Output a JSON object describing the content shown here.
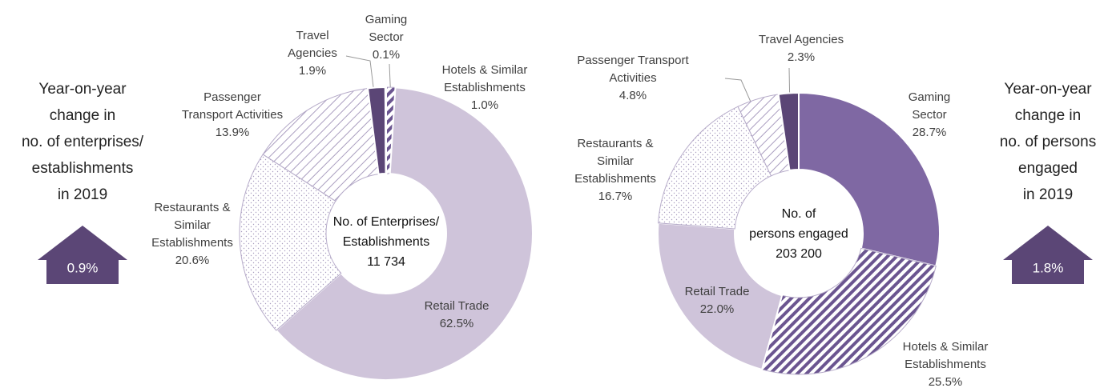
{
  "chart_data": [
    {
      "type": "donut",
      "center_label": [
        "No. of Enterprises/",
        "Establishments"
      ],
      "center_value": "11 734",
      "categories": [
        [
          "Hotels & Similar",
          "Establishments"
        ],
        [
          "Retail Trade"
        ],
        [
          "Restaurants &",
          "Similar",
          "Establishments"
        ],
        [
          "Passenger",
          "Transport Activities"
        ],
        [
          "Travel",
          "Agencies"
        ],
        [
          "Gaming",
          "Sector"
        ]
      ],
      "values": [
        1.0,
        62.5,
        20.6,
        13.9,
        1.9,
        0.1
      ],
      "value_labels": [
        "1.0%",
        "62.5%",
        "20.6%",
        "13.9%",
        "1.9%",
        "0.1%"
      ],
      "colors": [
        "#6b5590",
        "#cfc4da",
        "#a99dbf",
        "#a99dbf",
        "#5b4676",
        "#7b65a0"
      ],
      "patterns": [
        "stripes",
        "solid",
        "dots",
        "hatch",
        "solid",
        "solid"
      ],
      "side_note": [
        "Year-on-year",
        "change in",
        "no. of enterprises/",
        "establishments",
        "in 2019"
      ],
      "change": "0.9%"
    },
    {
      "type": "donut",
      "center_label": [
        "No. of",
        "persons engaged"
      ],
      "center_value": "203 200",
      "categories": [
        [
          "Gaming",
          "Sector"
        ],
        [
          "Hotels & Similar",
          "Establishments"
        ],
        [
          "Retail Trade"
        ],
        [
          "Restaurants &",
          "Similar",
          "Establishments"
        ],
        [
          "Passenger Transport",
          "Activities"
        ],
        [
          "Travel Agencies"
        ]
      ],
      "values": [
        28.7,
        25.5,
        22.0,
        16.7,
        4.8,
        2.3
      ],
      "value_labels": [
        "28.7%",
        "25.5%",
        "22.0%",
        "16.7%",
        "4.8%",
        "2.3%"
      ],
      "colors": [
        "#7f68a3",
        "#6b5590",
        "#cfc4da",
        "#a99dbf",
        "#a99dbf",
        "#5b4676"
      ],
      "patterns": [
        "solid",
        "stripes",
        "solid",
        "dots",
        "hatch",
        "solid"
      ],
      "side_note": [
        "Year-on-year",
        "change in",
        "no. of persons",
        "engaged",
        "in 2019"
      ],
      "change": "1.8%"
    }
  ]
}
